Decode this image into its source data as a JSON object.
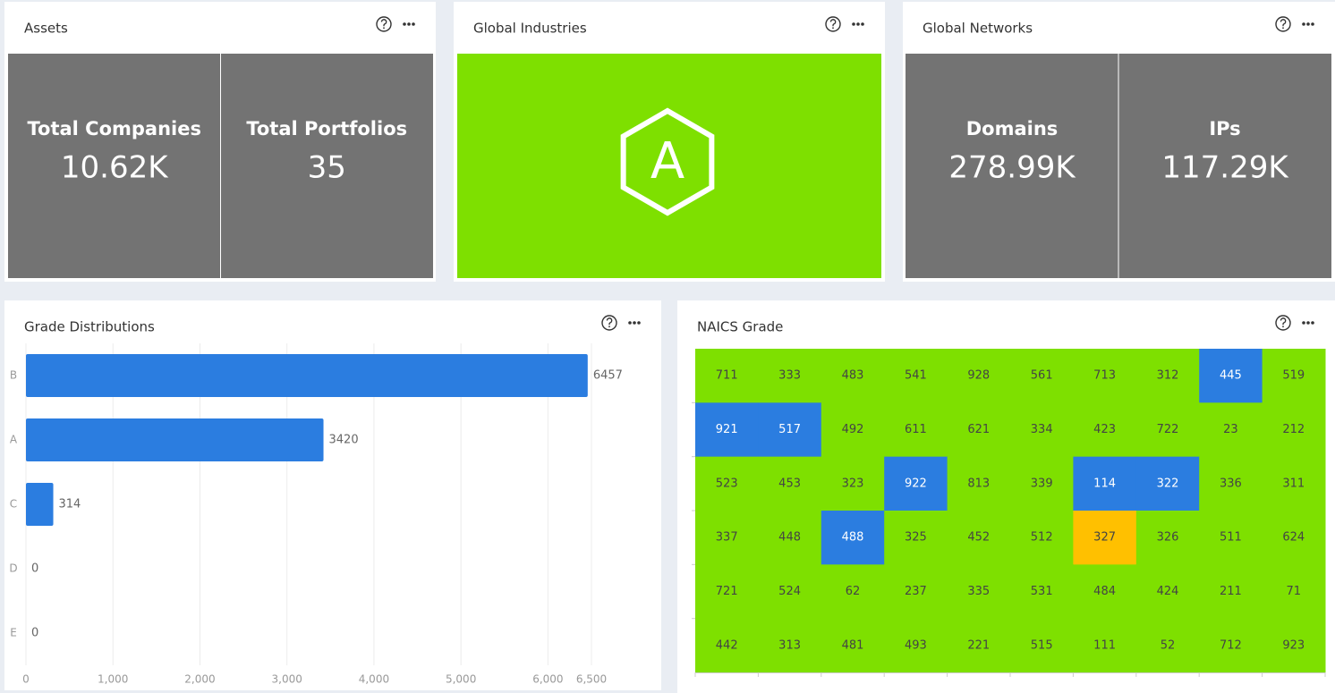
{
  "assets": {
    "title": "Assets",
    "stats": [
      {
        "label": "Total Companies",
        "value": "10.62K"
      },
      {
        "label": "Total Portfolios",
        "value": "35"
      }
    ]
  },
  "global_industries": {
    "title": "Global Industries",
    "grade": "A",
    "color": "#7ee000"
  },
  "global_networks": {
    "title": "Global Networks",
    "stats": [
      {
        "label": "Domains",
        "value": "278.99K"
      },
      {
        "label": "IPs",
        "value": "117.29K"
      }
    ]
  },
  "chart_data": {
    "type": "bar",
    "orientation": "horizontal",
    "title": "Grade Distributions",
    "categories": [
      "B",
      "A",
      "C",
      "D",
      "E"
    ],
    "values": [
      6457,
      3420,
      314,
      0,
      0
    ],
    "color": "#2b7de0",
    "xlim": [
      0,
      6500
    ],
    "xticks": [
      0,
      {
        "value": 1000,
        "label": "1,000"
      },
      {
        "value": 2000,
        "label": "2,000"
      },
      {
        "value": 3000,
        "label": "3,000"
      },
      {
        "value": 4000,
        "label": "4,000"
      },
      {
        "value": 5000,
        "label": "5,000"
      },
      {
        "value": 6000,
        "label": "6,000"
      },
      {
        "value": 6500,
        "label": "6,500"
      }
    ],
    "grid": true
  },
  "naics_grade": {
    "title": "NAICS Grade",
    "rows": [
      [
        711,
        333,
        483,
        541,
        928,
        561,
        713,
        312,
        445,
        519
      ],
      [
        921,
        517,
        492,
        611,
        621,
        334,
        423,
        722,
        23,
        212
      ],
      [
        523,
        453,
        323,
        922,
        813,
        339,
        114,
        322,
        336,
        311
      ],
      [
        337,
        448,
        488,
        325,
        452,
        512,
        327,
        326,
        511,
        624
      ],
      [
        721,
        524,
        62,
        237,
        335,
        531,
        484,
        424,
        211,
        71
      ],
      [
        442,
        313,
        481,
        493,
        221,
        515,
        111,
        52,
        712,
        923
      ]
    ],
    "colors": [
      [
        "#7ee000",
        "#7ee000",
        "#7ee000",
        "#7ee000",
        "#7ee000",
        "#7ee000",
        "#7ee000",
        "#7ee000",
        "#2b7de0",
        "#7ee000"
      ],
      [
        "#2b7de0",
        "#2b7de0",
        "#7ee000",
        "#7ee000",
        "#7ee000",
        "#7ee000",
        "#7ee000",
        "#7ee000",
        "#7ee000",
        "#7ee000"
      ],
      [
        "#7ee000",
        "#7ee000",
        "#7ee000",
        "#2b7de0",
        "#7ee000",
        "#7ee000",
        "#2b7de0",
        "#2b7de0",
        "#7ee000",
        "#7ee000"
      ],
      [
        "#7ee000",
        "#7ee000",
        "#2b7de0",
        "#7ee000",
        "#7ee000",
        "#7ee000",
        "#ffc000",
        "#7ee000",
        "#7ee000",
        "#7ee000"
      ],
      [
        "#7ee000",
        "#7ee000",
        "#7ee000",
        "#7ee000",
        "#7ee000",
        "#7ee000",
        "#7ee000",
        "#7ee000",
        "#7ee000",
        "#7ee000"
      ],
      [
        "#7ee000",
        "#7ee000",
        "#7ee000",
        "#7ee000",
        "#7ee000",
        "#7ee000",
        "#7ee000",
        "#7ee000",
        "#7ee000",
        "#7ee000"
      ]
    ]
  }
}
